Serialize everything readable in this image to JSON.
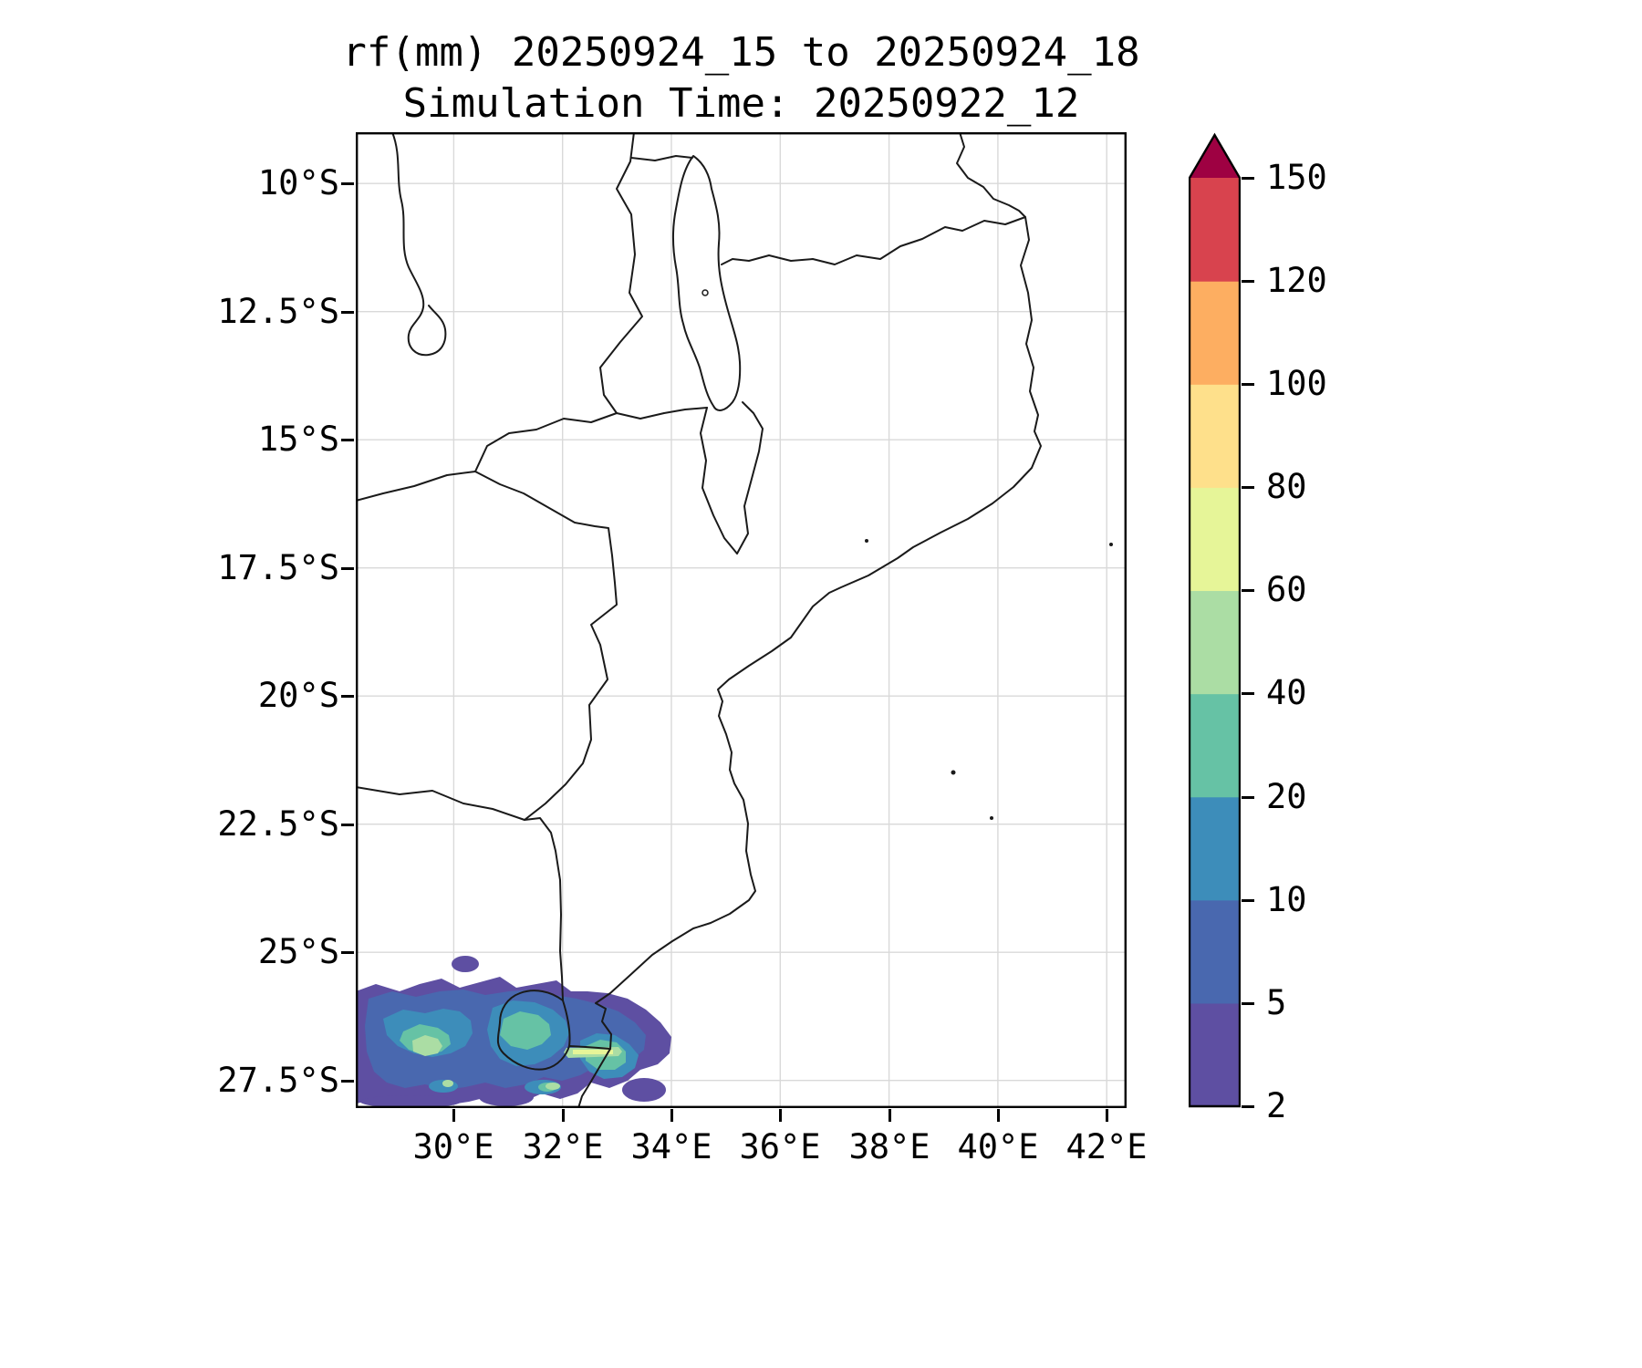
{
  "figure": {
    "title_line1": "rf(mm) 20250924_15 to 20250924_18",
    "title_line2": "Simulation Time: 20250922_12"
  },
  "axes": {
    "x_ticks": [
      "30°E",
      "32°E",
      "34°E",
      "36°E",
      "38°E",
      "40°E",
      "42°E"
    ],
    "y_ticks": [
      "10°S",
      "12.5°S",
      "15°S",
      "17.5°S",
      "20°S",
      "22.5°S",
      "25°S",
      "27.5°S"
    ]
  },
  "colorbar": {
    "tick_labels_top_to_bottom": [
      "150",
      "120",
      "100",
      "80",
      "60",
      "40",
      "20",
      "10",
      "5",
      "2"
    ],
    "levels_mm": [
      2,
      5,
      10,
      20,
      40,
      60,
      80,
      100,
      120,
      150
    ],
    "segment_colors_bottom_to_top": [
      "#5e4fa2",
      "#4968af",
      "#3d8dba",
      "#66c2a5",
      "#abdda4",
      "#e6f598",
      "#fee08b",
      "#fdae61",
      "#d8434e"
    ],
    "over_color": "#9e0142"
  },
  "chart_data": {
    "type": "heatmap",
    "variable": "rf",
    "units": "mm",
    "title": "rf(mm) 20250924_15 to 20250924_18",
    "subtitle": "Simulation Time: 20250922_12",
    "valid_from": "20250924_15",
    "valid_to": "20250924_18",
    "simulation_time": "20250922_12",
    "x_axis": {
      "label": "longitude",
      "tick_labels": [
        "30°E",
        "32°E",
        "34°E",
        "36°E",
        "38°E",
        "40°E",
        "42°E"
      ],
      "approx_range_deg_e": [
        28.2,
        42.4
      ]
    },
    "y_axis": {
      "label": "latitude",
      "tick_labels": [
        "10°S",
        "12.5°S",
        "15°S",
        "17.5°S",
        "20°S",
        "22.5°S",
        "25°S",
        "27.5°S"
      ],
      "approx_range_deg_s": [
        9.0,
        28.1
      ]
    },
    "color_scale": {
      "levels_mm": [
        2,
        5,
        10,
        20,
        40,
        60,
        80,
        100,
        120,
        150
      ],
      "colors_low_to_high": [
        "#5e4fa2",
        "#4968af",
        "#3d8dba",
        "#66c2a5",
        "#abdda4",
        "#e6f598",
        "#fee08b",
        "#fdae61",
        "#d8434e"
      ],
      "over_color": "#9e0142",
      "below_minimum": "values under 2 mm are unshaded (white)"
    },
    "precipitation_features": [
      {
        "area": "southwest corner of domain, roughly 28.2–34°E and 25.8–28°S (northeastern South Africa, Eswatini, far southern Mozambique)",
        "typical_values_mm": "2–20",
        "embedded_cores_mm": "20–60",
        "peak_value_mm": "60–80",
        "description": "broad band of light rain with several teal/green cores and a narrow 60–80 mm yellow-green streak near 32.3–33.1°E, 27°S"
      },
      {
        "area": "isolated small cell near 30.2°E, 25.2°S",
        "peak_value_mm": "2–5"
      }
    ],
    "rest_of_domain": "no rainfall shading (< 2 mm)",
    "map_overlay": [
      "coastline of southeastern Africa and the Mozambique Channel",
      "national borders: Tanzania, Mozambique, Malawi, Zambia, Zimbabwe, South Africa, Eswatini",
      "Lake Malawi outline with Likoma island",
      "small offshore islands in the Mozambique Channel"
    ],
    "grid": "light gray graticule at tick positions",
    "legend_position": "vertical colorbar at right with pointed over-range arrow on top"
  }
}
